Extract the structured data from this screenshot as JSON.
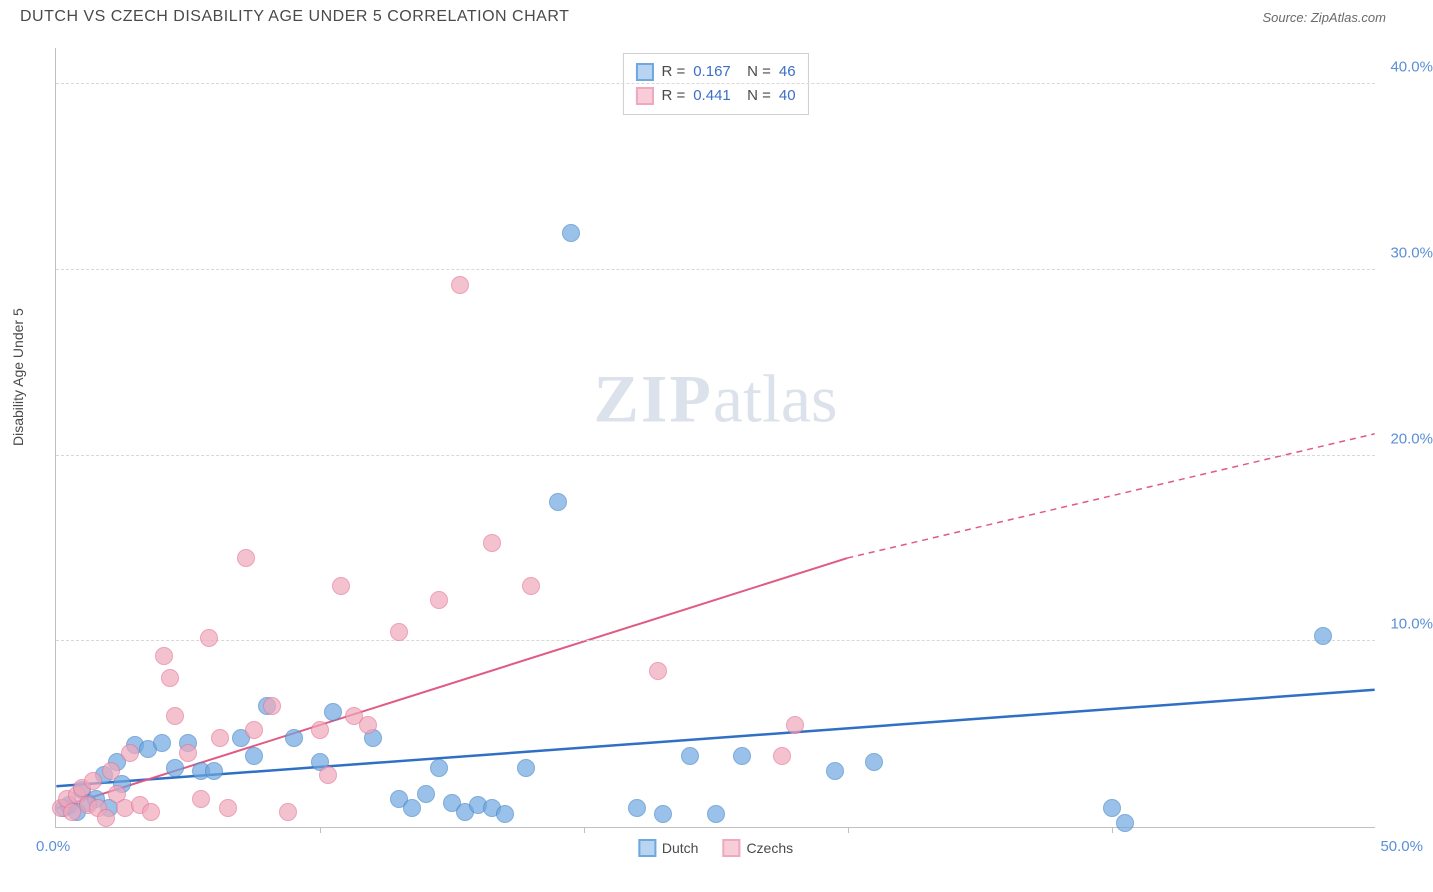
{
  "header": {
    "title": "DUTCH VS CZECH DISABILITY AGE UNDER 5 CORRELATION CHART",
    "source_prefix": "Source: ",
    "source_name": "ZipAtlas.com"
  },
  "watermark": {
    "zip": "ZIP",
    "atlas": "atlas"
  },
  "chart": {
    "type": "scatter",
    "ylabel": "Disability Age Under 5",
    "background_color": "#ffffff",
    "grid_color": "#d8d8d8",
    "axis_color": "#c0c0c0",
    "tick_label_color": "#5b8fd6",
    "tick_fontsize": 15,
    "label_fontsize": 14,
    "xlim": [
      0,
      50
    ],
    "ylim": [
      0,
      42
    ],
    "x_tick_positions": [
      10,
      20,
      30,
      40
    ],
    "x_start_label": "0.0%",
    "x_end_label": "50.0%",
    "y_ticks": [
      {
        "pos": 10,
        "label": "10.0%"
      },
      {
        "pos": 20,
        "label": "20.0%"
      },
      {
        "pos": 30,
        "label": "30.0%"
      },
      {
        "pos": 40,
        "label": "40.0%"
      }
    ],
    "point_radius": 9,
    "point_fill_opacity": 0.35,
    "point_stroke_width": 1.5,
    "series": [
      {
        "name": "Dutch",
        "color": "#6ea8e0",
        "stroke": "#4a88c8",
        "trend_color": "#2f6fc4",
        "trend_width": 2.5,
        "trend_dash": "none",
        "trend": {
          "x1": 0,
          "y1": 2.2,
          "x2": 50,
          "y2": 7.4
        },
        "stats": {
          "R": "0.167",
          "N": "46"
        },
        "points": [
          [
            0.3,
            1.0
          ],
          [
            0.5,
            1.2
          ],
          [
            0.8,
            0.8
          ],
          [
            1.0,
            2.0
          ],
          [
            1.2,
            1.3
          ],
          [
            1.5,
            1.5
          ],
          [
            1.8,
            2.8
          ],
          [
            2.0,
            1.0
          ],
          [
            2.3,
            3.5
          ],
          [
            2.5,
            2.3
          ],
          [
            3.0,
            4.4
          ],
          [
            3.5,
            4.2
          ],
          [
            4.0,
            4.5
          ],
          [
            4.5,
            3.2
          ],
          [
            5.0,
            4.5
          ],
          [
            5.5,
            3.0
          ],
          [
            6.0,
            3.0
          ],
          [
            7.0,
            4.8
          ],
          [
            7.5,
            3.8
          ],
          [
            8.0,
            6.5
          ],
          [
            9.0,
            4.8
          ],
          [
            10.0,
            3.5
          ],
          [
            10.5,
            6.2
          ],
          [
            12.0,
            4.8
          ],
          [
            13.0,
            1.5
          ],
          [
            13.5,
            1.0
          ],
          [
            14.0,
            1.8
          ],
          [
            14.5,
            3.2
          ],
          [
            15.0,
            1.3
          ],
          [
            15.5,
            0.8
          ],
          [
            16.0,
            1.2
          ],
          [
            16.5,
            1.0
          ],
          [
            17.0,
            0.7
          ],
          [
            17.8,
            3.2
          ],
          [
            19.0,
            17.5
          ],
          [
            19.5,
            32.0
          ],
          [
            22.0,
            1.0
          ],
          [
            23.0,
            0.7
          ],
          [
            24.0,
            3.8
          ],
          [
            25.0,
            0.7
          ],
          [
            26.0,
            3.8
          ],
          [
            29.5,
            3.0
          ],
          [
            31.0,
            3.5
          ],
          [
            40.0,
            1.0
          ],
          [
            40.5,
            0.2
          ],
          [
            48.0,
            10.3
          ]
        ]
      },
      {
        "name": "Czechs",
        "color": "#f0a8bc",
        "stroke": "#e47a9a",
        "trend_color": "#e05a82",
        "trend_width": 2,
        "trend_dash": "none",
        "trend": {
          "x1": 0,
          "y1": 1.0,
          "x2": 30,
          "y2": 14.5
        },
        "trend_ext": {
          "x1": 30,
          "y1": 14.5,
          "x2": 50,
          "y2": 21.2
        },
        "stats": {
          "R": "0.441",
          "N": "40"
        },
        "points": [
          [
            0.2,
            1.0
          ],
          [
            0.4,
            1.5
          ],
          [
            0.6,
            0.8
          ],
          [
            0.8,
            1.7
          ],
          [
            1.0,
            2.1
          ],
          [
            1.2,
            1.2
          ],
          [
            1.4,
            2.5
          ],
          [
            1.6,
            1.0
          ],
          [
            1.9,
            0.5
          ],
          [
            2.1,
            3.0
          ],
          [
            2.3,
            1.8
          ],
          [
            2.6,
            1.0
          ],
          [
            2.8,
            4.0
          ],
          [
            3.2,
            1.2
          ],
          [
            3.6,
            0.8
          ],
          [
            4.1,
            9.2
          ],
          [
            4.3,
            8.0
          ],
          [
            4.5,
            6.0
          ],
          [
            5.0,
            4.0
          ],
          [
            5.5,
            1.5
          ],
          [
            5.8,
            10.2
          ],
          [
            6.2,
            4.8
          ],
          [
            6.5,
            1.0
          ],
          [
            7.2,
            14.5
          ],
          [
            7.5,
            5.2
          ],
          [
            8.2,
            6.5
          ],
          [
            8.8,
            0.8
          ],
          [
            10.0,
            5.2
          ],
          [
            10.3,
            2.8
          ],
          [
            10.8,
            13.0
          ],
          [
            11.3,
            6.0
          ],
          [
            11.8,
            5.5
          ],
          [
            13.0,
            10.5
          ],
          [
            14.5,
            12.2
          ],
          [
            15.3,
            29.2
          ],
          [
            16.5,
            15.3
          ],
          [
            18.0,
            13.0
          ],
          [
            22.8,
            8.4
          ],
          [
            27.5,
            3.8
          ],
          [
            28.0,
            5.5
          ]
        ]
      }
    ],
    "legend": [
      {
        "label": "Dutch",
        "fill": "#b8d4f0",
        "stroke": "#6ea8e0"
      },
      {
        "label": "Czechs",
        "fill": "#f8cdd9",
        "stroke": "#f0a8bc"
      }
    ]
  }
}
